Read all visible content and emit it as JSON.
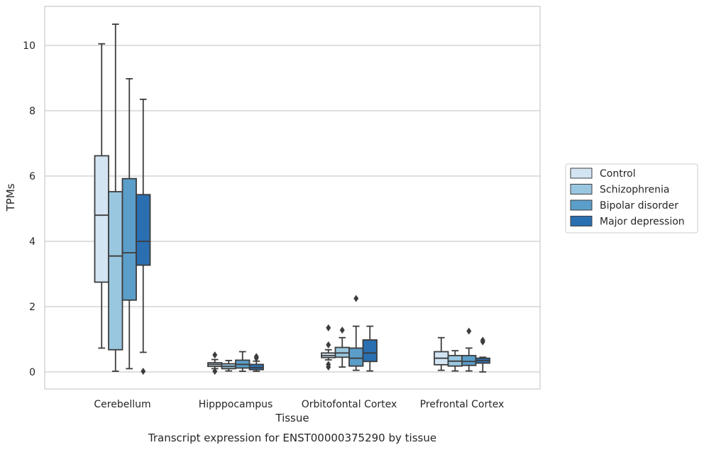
{
  "chart_data": {
    "type": "box",
    "xlabel": "Tissue",
    "ylabel": "TPMs",
    "caption": "Transcript expression for ENST00000375290 by tissue",
    "ylim": [
      -0.5,
      11.2
    ],
    "yticks": [
      "0",
      "2",
      "4",
      "6",
      "8",
      "10"
    ],
    "grid": true,
    "legend_position": "right",
    "categories": [
      "Cerebellum",
      "Hipppocampus",
      "Orbitofontal Cortex",
      "Prefrontal Cortex"
    ],
    "series": [
      {
        "name": "Control",
        "color": "#d3e4f3",
        "boxes": [
          {
            "min": 0.73,
            "q1": 2.75,
            "median": 4.8,
            "q3": 6.62,
            "max": 10.05,
            "outliers": []
          },
          {
            "min": 0.1,
            "q1": 0.17,
            "median": 0.23,
            "q3": 0.28,
            "max": 0.38,
            "outliers": [
              0.52,
              0.02
            ]
          },
          {
            "min": 0.37,
            "q1": 0.44,
            "median": 0.5,
            "q3": 0.58,
            "max": 0.68,
            "outliers": [
              1.35,
              0.83,
              0.23,
              0.15
            ]
          },
          {
            "min": 0.05,
            "q1": 0.22,
            "median": 0.42,
            "q3": 0.62,
            "max": 1.05,
            "outliers": []
          }
        ]
      },
      {
        "name": "Schizophrenia",
        "color": "#9ac7e0",
        "boxes": [
          {
            "min": 0.02,
            "q1": 0.68,
            "median": 3.55,
            "q3": 5.52,
            "max": 10.65,
            "outliers": []
          },
          {
            "min": 0.03,
            "q1": 0.1,
            "median": 0.17,
            "q3": 0.25,
            "max": 0.35,
            "outliers": []
          },
          {
            "min": 0.15,
            "q1": 0.45,
            "median": 0.58,
            "q3": 0.75,
            "max": 1.05,
            "outliers": [
              1.28
            ]
          },
          {
            "min": 0.03,
            "q1": 0.18,
            "median": 0.33,
            "q3": 0.5,
            "max": 0.65,
            "outliers": []
          }
        ]
      },
      {
        "name": "Bipolar disorder",
        "color": "#5b9ec9",
        "boxes": [
          {
            "min": 0.1,
            "q1": 2.2,
            "median": 3.65,
            "q3": 5.92,
            "max": 8.98,
            "outliers": []
          },
          {
            "min": 0.02,
            "q1": 0.12,
            "median": 0.23,
            "q3": 0.36,
            "max": 0.62,
            "outliers": []
          },
          {
            "min": 0.05,
            "q1": 0.18,
            "median": 0.42,
            "q3": 0.73,
            "max": 1.4,
            "outliers": [
              2.25
            ]
          },
          {
            "min": 0.03,
            "q1": 0.2,
            "median": 0.32,
            "q3": 0.5,
            "max": 0.73,
            "outliers": [
              1.25
            ]
          }
        ]
      },
      {
        "name": "Major depression",
        "color": "#2a6fb1",
        "boxes": [
          {
            "min": 0.6,
            "q1": 3.27,
            "median": 4.0,
            "q3": 5.43,
            "max": 8.35,
            "outliers": [
              0.02
            ]
          },
          {
            "min": 0.02,
            "q1": 0.07,
            "median": 0.13,
            "q3": 0.23,
            "max": 0.33,
            "outliers": [
              0.47,
              0.42
            ]
          },
          {
            "min": 0.03,
            "q1": 0.32,
            "median": 0.58,
            "q3": 0.98,
            "max": 1.4,
            "outliers": []
          },
          {
            "min": 0.0,
            "q1": 0.27,
            "median": 0.35,
            "q3": 0.42,
            "max": 0.45,
            "outliers": [
              0.97,
              0.92
            ]
          }
        ]
      }
    ]
  }
}
